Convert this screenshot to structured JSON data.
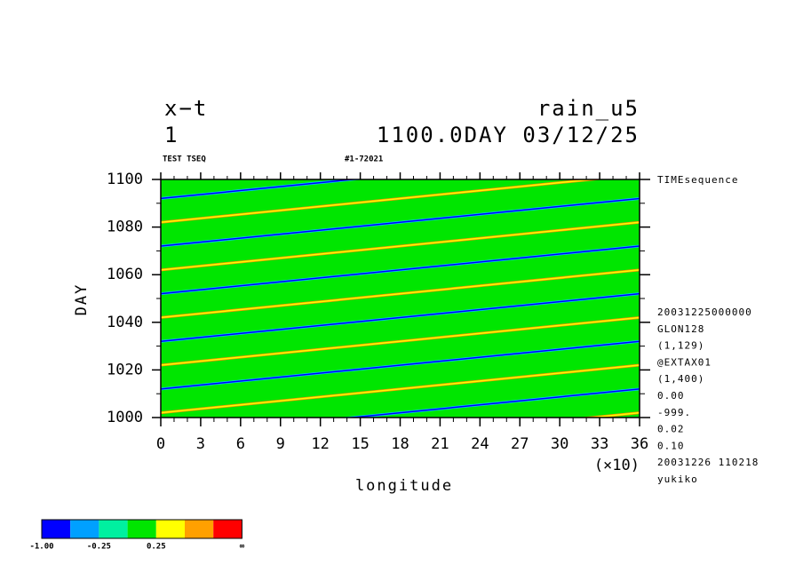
{
  "chart_data": {
    "type": "hovmoller",
    "title_left": [
      "x−t",
      "1"
    ],
    "title_right": [
      "rain_u5",
      "1100.0DAY 03/12/25"
    ],
    "subtitle_left": "TEST TSEQ",
    "subtitle_mid": "#1-72021",
    "right_label": "TIMEsequence",
    "info": [
      "20031225000000",
      "GLON128",
      "(1,129)",
      "@EXTAX01",
      "(1,400)",
      "0.00",
      "-999.",
      "0.02",
      "0.10",
      "20031226 110218",
      "yukiko"
    ],
    "x_label": "longitude",
    "y_label": "DAY",
    "x_scale_label": "(×10)",
    "xlim": [
      0,
      36
    ],
    "xticks": [
      0,
      3,
      6,
      9,
      12,
      15,
      18,
      21,
      24,
      27,
      30,
      33,
      36
    ],
    "ylim": [
      1000,
      1100
    ],
    "yticks": [
      1000,
      1020,
      1040,
      1060,
      1080,
      1100
    ],
    "background_color": "#00e600",
    "x": [
      0,
      36
    ],
    "series": [
      {
        "color": "#ffff00",
        "values": [
          982,
          1002
        ]
      },
      {
        "color": "#ffff00",
        "values": [
          1002,
          1022
        ]
      },
      {
        "color": "#ffff00",
        "values": [
          1022,
          1042
        ]
      },
      {
        "color": "#ffff00",
        "values": [
          1042,
          1062
        ]
      },
      {
        "color": "#ffff00",
        "values": [
          1062,
          1082
        ]
      },
      {
        "color": "#ffff00",
        "values": [
          1082,
          1102
        ]
      },
      {
        "color": "#0000ff",
        "values": [
          992,
          1012
        ]
      },
      {
        "color": "#0000ff",
        "values": [
          1012,
          1032
        ]
      },
      {
        "color": "#0000ff",
        "values": [
          1032,
          1052
        ]
      },
      {
        "color": "#0000ff",
        "values": [
          1052,
          1072
        ]
      },
      {
        "color": "#0000ff",
        "values": [
          1072,
          1092
        ]
      },
      {
        "color": "#0000ff",
        "values": [
          1092,
          1112
        ]
      }
    ],
    "colorbar": {
      "colors": [
        "#0000ff",
        "#00a0ff",
        "#00f0a0",
        "#00e600",
        "#ffff00",
        "#ffa000",
        "#ff0000"
      ],
      "labels": [
        "-1.00",
        "-0.25",
        "0.25",
        "∞"
      ]
    }
  }
}
